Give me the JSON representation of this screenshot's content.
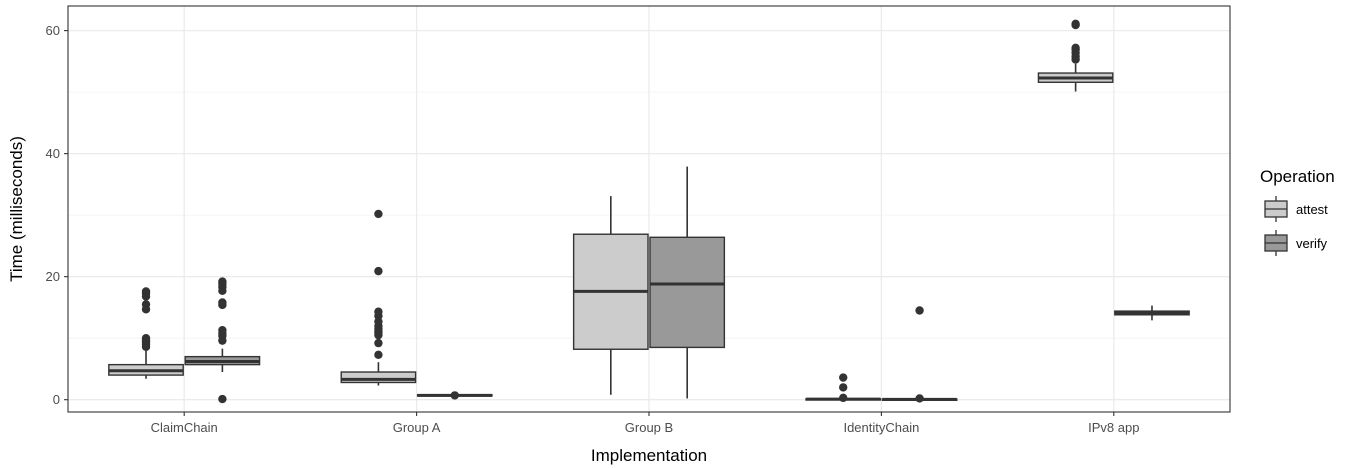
{
  "chart_data": {
    "type": "boxplot",
    "xlabel": "Implementation",
    "ylabel": "Time (milliseconds)",
    "ylim": [
      -2,
      64
    ],
    "yticks": [
      0,
      20,
      40,
      60
    ],
    "grid": true,
    "legend": {
      "title": "Operation",
      "placement": "right",
      "entries": [
        {
          "name": "attest",
          "color": "#cccccc"
        },
        {
          "name": "verify",
          "color": "#999999"
        }
      ]
    },
    "categories": [
      "ClaimChain",
      "Group A",
      "Group B",
      "IdentityChain",
      "IPv8 app"
    ],
    "series": [
      {
        "name": "attest",
        "color": "#cccccc",
        "boxes": [
          {
            "whisker_low": 3.4,
            "q1": 4.0,
            "median": 4.7,
            "q3": 5.7,
            "whisker_high": 8.1,
            "outliers": [
              8.6,
              9.0,
              9.3,
              9.6,
              10.0,
              14.7,
              15.5,
              16.8,
              17.3,
              17.6
            ]
          },
          {
            "whisker_low": 2.3,
            "q1": 2.8,
            "median": 3.3,
            "q3": 4.5,
            "whisker_high": 6.1,
            "outliers": [
              7.3,
              9.2,
              10.5,
              10.9,
              11.2,
              11.6,
              12.0,
              12.7,
              13.6,
              14.3,
              20.9,
              30.2
            ]
          },
          {
            "whisker_low": 0.8,
            "q1": 8.2,
            "median": 17.6,
            "q3": 26.9,
            "whisker_high": 33.1,
            "outliers": []
          },
          {
            "whisker_low": 0.0,
            "q1": 0.05,
            "median": 0.1,
            "q3": 0.15,
            "whisker_high": 0.2,
            "outliers": [
              0.3,
              2.0,
              3.6
            ]
          },
          {
            "whisker_low": 50.1,
            "q1": 51.6,
            "median": 52.3,
            "q3": 53.1,
            "whisker_high": 54.6,
            "outliers": [
              55.3,
              55.8,
              56.4,
              56.9,
              57.2,
              60.9,
              61.1
            ]
          }
        ]
      },
      {
        "name": "verify",
        "color": "#999999",
        "boxes": [
          {
            "whisker_low": 4.5,
            "q1": 5.7,
            "median": 6.2,
            "q3": 7.0,
            "whisker_high": 8.3,
            "outliers": [
              0.1,
              9.6,
              10.4,
              10.8,
              11.3,
              15.4,
              15.8,
              17.7,
              18.3,
              18.8,
              19.2
            ]
          },
          {
            "whisker_low": 0.5,
            "q1": 0.6,
            "median": 0.7,
            "q3": 0.8,
            "whisker_high": 0.9,
            "outliers": [
              0.7
            ]
          },
          {
            "whisker_low": 0.2,
            "q1": 8.5,
            "median": 18.8,
            "q3": 26.4,
            "whisker_high": 37.9,
            "outliers": []
          },
          {
            "whisker_low": 0.0,
            "q1": 0.02,
            "median": 0.05,
            "q3": 0.1,
            "whisker_high": 0.15,
            "outliers": [
              0.2,
              14.5
            ]
          },
          {
            "whisker_low": 12.9,
            "q1": 13.8,
            "median": 14.1,
            "q3": 14.4,
            "whisker_high": 15.3,
            "outliers": []
          }
        ]
      }
    ]
  }
}
